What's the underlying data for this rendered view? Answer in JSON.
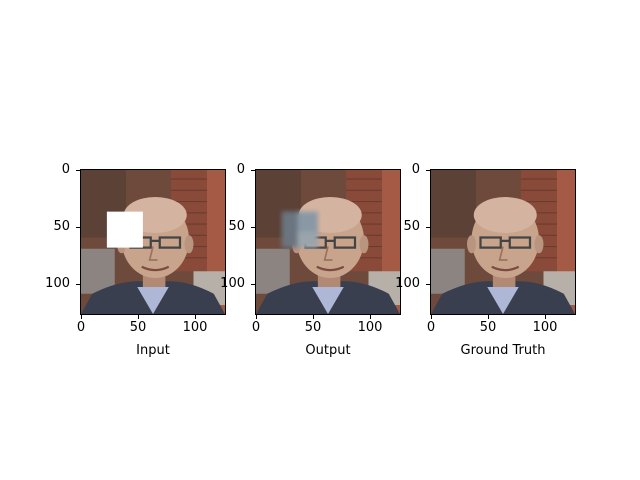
{
  "figure": {
    "panels": [
      {
        "id": "input",
        "xlabel": "Input",
        "mask": "white",
        "xticks": [
          "0",
          "50",
          "100"
        ],
        "yticks": [
          "0",
          "50",
          "100"
        ]
      },
      {
        "id": "output",
        "xlabel": "Output",
        "mask": "blurred",
        "xticks": [
          "0",
          "50",
          "100"
        ],
        "yticks": [
          "0",
          "50",
          "100"
        ]
      },
      {
        "id": "ground-truth",
        "xlabel": "Ground Truth",
        "mask": "none",
        "xticks": [
          "0",
          "50",
          "100"
        ],
        "yticks": [
          "0",
          "50",
          "100"
        ]
      }
    ],
    "colors": {
      "background_brick": "#8a4a3a",
      "face": "#c9a48c",
      "jacket": "#3a3f4f",
      "shirt": "#aeb8d6",
      "mask_output": "#8a98a6",
      "mask_input": "#ffffff"
    }
  }
}
